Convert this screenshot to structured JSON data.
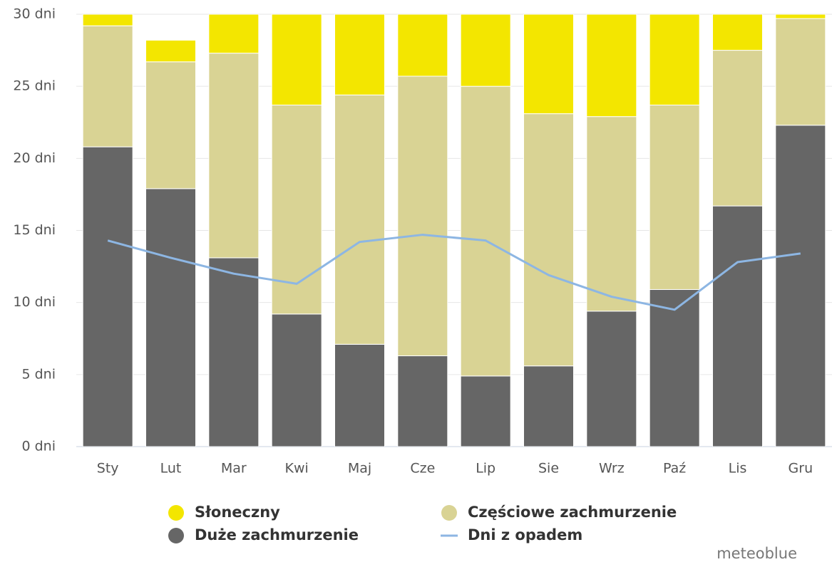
{
  "chart_data": {
    "type": "bar",
    "stacked": true,
    "categories": [
      "Sty",
      "Lut",
      "Mar",
      "Kwi",
      "Maj",
      "Cze",
      "Lip",
      "Sie",
      "Wrz",
      "Paź",
      "Lis",
      "Gru"
    ],
    "series": [
      {
        "name": "Słoneczny",
        "color": "#f3e600",
        "values": [
          0.8,
          1.5,
          2.7,
          6.3,
          5.6,
          4.3,
          5.0,
          6.9,
          7.1,
          6.3,
          2.5,
          0.3
        ]
      },
      {
        "name": "Częściowe zachmurzenie",
        "color": "#d9d394",
        "values": [
          8.4,
          8.8,
          14.2,
          14.5,
          17.3,
          19.4,
          20.1,
          17.5,
          13.5,
          12.8,
          10.8,
          7.4
        ]
      },
      {
        "name": "Duże zachmurzenie",
        "color": "#666666",
        "values": [
          20.8,
          17.9,
          13.1,
          9.2,
          7.1,
          6.3,
          4.9,
          5.6,
          9.4,
          10.9,
          16.7,
          22.3
        ]
      },
      {
        "name": "Dni z opadem",
        "color": "#8db6e3",
        "type": "line",
        "values": [
          14.3,
          13.1,
          12.0,
          11.3,
          14.2,
          14.7,
          14.3,
          11.9,
          10.4,
          9.5,
          12.8,
          13.4
        ]
      }
    ],
    "ylim": [
      0,
      30
    ],
    "yticks": [
      {
        "value": 0,
        "label": "0 dni"
      },
      {
        "value": 5,
        "label": "5 dni"
      },
      {
        "value": 10,
        "label": "10 dni"
      },
      {
        "value": 15,
        "label": "15 dni"
      },
      {
        "value": 20,
        "label": "20 dni"
      },
      {
        "value": 25,
        "label": "25 dni"
      },
      {
        "value": 30,
        "label": "30 dni"
      }
    ],
    "grid": true,
    "credit": "meteoblue"
  }
}
